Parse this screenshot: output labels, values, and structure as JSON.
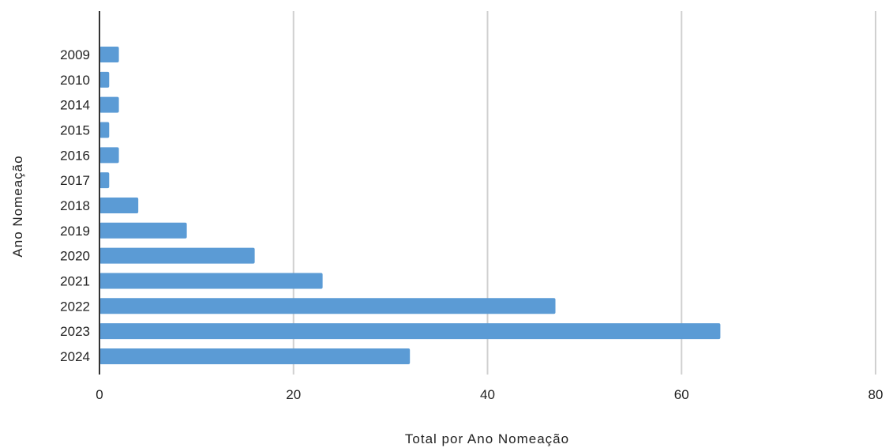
{
  "chart_data": {
    "type": "bar",
    "orientation": "horizontal",
    "title": "",
    "xlabel": "Total por Ano Nomeação",
    "ylabel": "Ano Nomeação",
    "categories": [
      "2009",
      "2010",
      "2014",
      "2015",
      "2016",
      "2017",
      "2018",
      "2019",
      "2020",
      "2021",
      "2022",
      "2023",
      "2024"
    ],
    "values": [
      2,
      1,
      2,
      1,
      2,
      1,
      4,
      9,
      16,
      23,
      47,
      64,
      32
    ],
    "xlim": [
      0,
      80
    ],
    "xticks": [
      "0",
      "20",
      "40",
      "60",
      "80"
    ],
    "grid": "vertical",
    "legend": "none",
    "bar_color": "#5b9bd5",
    "grid_color": "#d0d0d0",
    "axis_color": "#333333"
  }
}
